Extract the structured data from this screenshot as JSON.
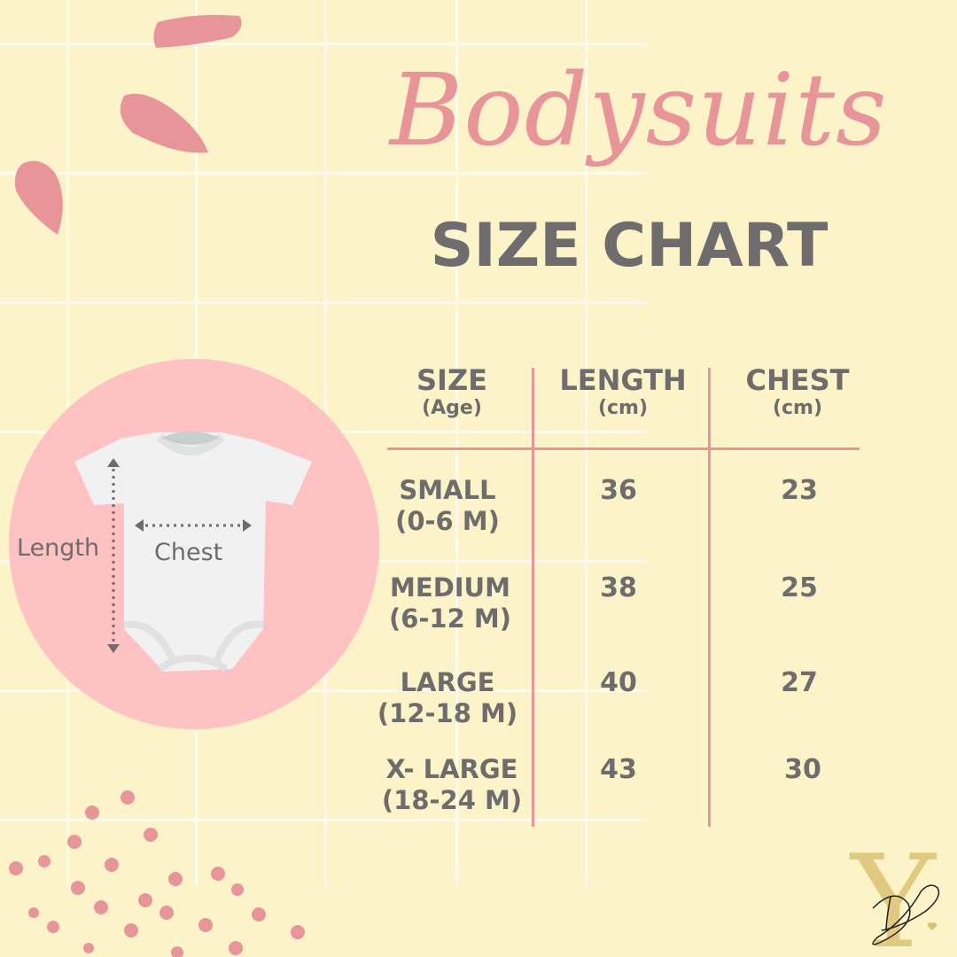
{
  "title": "Bodysuits",
  "subtitle": "SIZE CHART",
  "diagram": {
    "length_label": "Length",
    "chest_label": "Chest"
  },
  "table": {
    "headers": [
      {
        "label": "SIZE",
        "sub": "(Age)"
      },
      {
        "label": "LENGTH",
        "sub": "(cm)"
      },
      {
        "label": "CHEST",
        "sub": "(cm)"
      }
    ],
    "rows": [
      {
        "size": "SMALL",
        "age": "(0-6 M)",
        "length": "36",
        "chest": "23"
      },
      {
        "size": "MEDIUM",
        "age": "(6-12 M)",
        "length": "38",
        "chest": "25"
      },
      {
        "size": "LARGE",
        "age": "(12-18 M)",
        "length": "40",
        "chest": "27"
      },
      {
        "size": "X- LARGE",
        "age": "(18-24 M)",
        "length": "43",
        "chest": "30"
      }
    ]
  },
  "logo": {
    "text": "YD"
  },
  "colors": {
    "background": "#fcf3c8",
    "accent": "#e8959a",
    "circle": "#ffc2c2",
    "text": "#6e6c6c",
    "logo_gold": "#dcc373"
  }
}
